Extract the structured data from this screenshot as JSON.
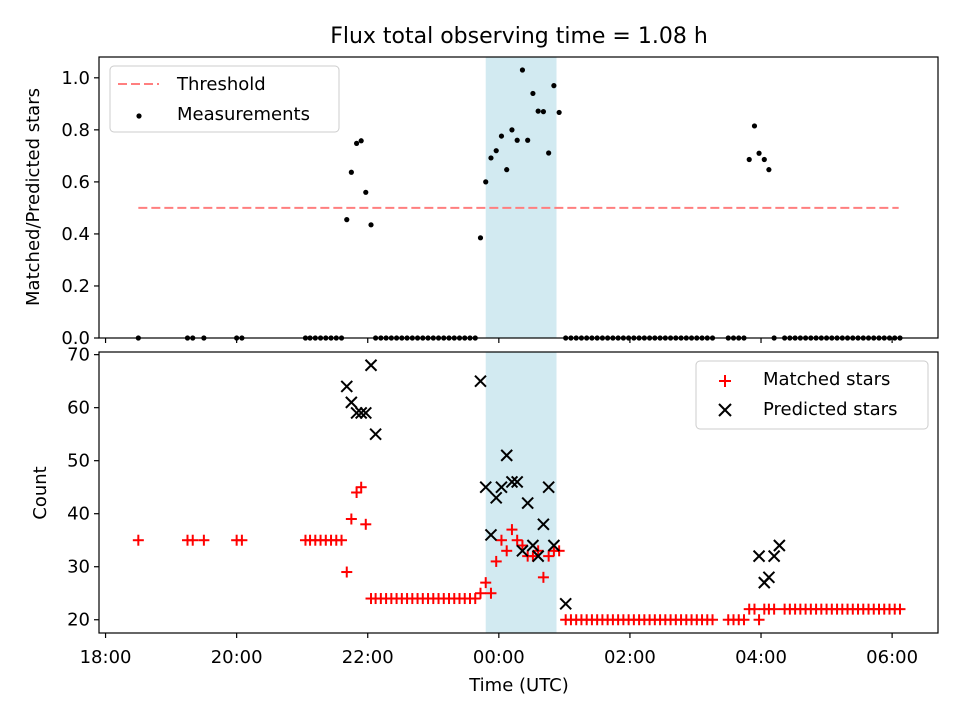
{
  "title": "Flux total observing time = 1.08 h",
  "chart_data": [
    {
      "type": "scatter",
      "ylabel": "Matched/Predicted stars",
      "xlabel": "",
      "ylim": [
        0.0,
        1.08
      ],
      "yticks": [
        0.0,
        0.2,
        0.4,
        0.6,
        0.8,
        1.0
      ],
      "ytick_labels": [
        "0.0",
        "0.2",
        "0.4",
        "0.6",
        "0.8",
        "1.0"
      ],
      "grid": false,
      "legend_position": "upper-left",
      "shaded_interval": {
        "start": 23.8,
        "end": 24.88,
        "color": "#add8e6"
      },
      "threshold": {
        "name": "Threshold",
        "y": 0.5,
        "x_start": 18.5,
        "x_end": 30.1,
        "color": "#ff7f7f"
      },
      "series": [
        {
          "name": "Measurements",
          "marker": "dot",
          "color": "#000000",
          "x": [
            18.5,
            19.25,
            19.33,
            19.5,
            20.0,
            20.08,
            21.05,
            21.12,
            21.2,
            21.28,
            21.36,
            21.44,
            21.52,
            21.6,
            21.68,
            21.75,
            21.83,
            21.9,
            21.97,
            22.05,
            22.12,
            22.2,
            22.28,
            22.36,
            22.44,
            22.52,
            22.6,
            22.68,
            22.76,
            22.84,
            22.92,
            23.0,
            23.08,
            23.16,
            23.24,
            23.32,
            23.4,
            23.48,
            23.56,
            23.64,
            23.72,
            23.8,
            23.88,
            23.96,
            24.04,
            24.12,
            24.2,
            24.28,
            24.36,
            24.44,
            24.52,
            24.6,
            24.68,
            24.76,
            24.84,
            24.92,
            25.02,
            25.1,
            25.18,
            25.26,
            25.34,
            25.42,
            25.5,
            25.58,
            25.66,
            25.74,
            25.82,
            25.9,
            25.98,
            26.06,
            26.14,
            26.22,
            26.3,
            26.38,
            26.46,
            26.54,
            26.62,
            26.7,
            26.78,
            26.86,
            26.94,
            27.02,
            27.1,
            27.18,
            27.26,
            27.5,
            27.58,
            27.66,
            27.74,
            27.82,
            27.9,
            27.97,
            28.05,
            28.12,
            28.2,
            28.36,
            28.44,
            28.52,
            28.6,
            28.68,
            28.76,
            28.84,
            28.92,
            29.0,
            29.08,
            29.16,
            29.24,
            29.32,
            29.4,
            29.48,
            29.56,
            29.64,
            29.72,
            29.8,
            29.88,
            29.96,
            30.04,
            30.12
          ],
          "y": [
            0.0,
            0.0,
            0.0,
            0.0,
            0.0,
            0.0,
            0.0,
            0.0,
            0.0,
            0.0,
            0.0,
            0.0,
            0.0,
            0.0,
            0.455,
            0.637,
            0.748,
            0.758,
            0.56,
            0.435,
            0.0,
            0.0,
            0.0,
            0.0,
            0.0,
            0.0,
            0.0,
            0.0,
            0.0,
            0.0,
            0.0,
            0.0,
            0.0,
            0.0,
            0.0,
            0.0,
            0.0,
            0.0,
            0.0,
            0.0,
            0.385,
            0.6,
            0.692,
            0.72,
            0.776,
            0.647,
            0.8,
            0.76,
            1.03,
            0.76,
            0.94,
            0.872,
            0.87,
            0.711,
            0.97,
            0.867,
            0.0,
            0.0,
            0.0,
            0.0,
            0.0,
            0.0,
            0.0,
            0.0,
            0.0,
            0.0,
            0.0,
            0.0,
            0.0,
            0.0,
            0.0,
            0.0,
            0.0,
            0.0,
            0.0,
            0.0,
            0.0,
            0.0,
            0.0,
            0.0,
            0.0,
            0.0,
            0.0,
            0.0,
            0.0,
            0.0,
            0.0,
            0.0,
            0.0,
            0.686,
            0.815,
            0.71,
            0.686,
            0.647,
            0.0,
            0.0,
            0.0,
            0.0,
            0.0,
            0.0,
            0.0,
            0.0,
            0.0,
            0.0,
            0.0,
            0.0,
            0.0,
            0.0,
            0.0,
            0.0,
            0.0,
            0.0,
            0.0,
            0.0,
            0.0,
            0.0,
            0.0,
            0.0
          ]
        }
      ],
      "legend": [
        "Threshold",
        "Measurements"
      ]
    },
    {
      "type": "scatter",
      "ylabel": "Count",
      "xlabel": "Time (UTC)",
      "ylim": [
        17.5,
        70.5
      ],
      "yticks": [
        20,
        30,
        40,
        50,
        60,
        70
      ],
      "ytick_labels": [
        "20",
        "30",
        "40",
        "50",
        "60",
        "70"
      ],
      "xlim": [
        17.9,
        30.7
      ],
      "xticks": [
        18,
        20,
        22,
        24,
        26,
        28,
        30
      ],
      "xtick_labels": [
        "18:00",
        "20:00",
        "22:00",
        "00:00",
        "02:00",
        "04:00",
        "06:00"
      ],
      "grid": false,
      "legend_position": "upper-right",
      "shaded_interval": {
        "start": 23.8,
        "end": 24.88,
        "color": "#add8e6"
      },
      "series": [
        {
          "name": "Matched stars",
          "marker": "plus",
          "color": "#ff0000",
          "x": [
            18.5,
            19.25,
            19.33,
            19.5,
            20.0,
            20.08,
            21.05,
            21.12,
            21.2,
            21.28,
            21.36,
            21.44,
            21.52,
            21.6,
            21.68,
            21.75,
            21.83,
            21.9,
            21.97,
            22.05,
            22.12,
            22.2,
            22.28,
            22.36,
            22.44,
            22.52,
            22.6,
            22.68,
            22.76,
            22.84,
            22.92,
            23.0,
            23.08,
            23.16,
            23.24,
            23.32,
            23.4,
            23.48,
            23.56,
            23.64,
            23.72,
            23.8,
            23.88,
            23.96,
            24.04,
            24.12,
            24.2,
            24.28,
            24.36,
            24.44,
            24.52,
            24.6,
            24.68,
            24.76,
            24.84,
            24.92,
            25.02,
            25.1,
            25.18,
            25.26,
            25.34,
            25.42,
            25.5,
            25.58,
            25.66,
            25.74,
            25.82,
            25.9,
            25.98,
            26.06,
            26.14,
            26.22,
            26.3,
            26.38,
            26.46,
            26.54,
            26.62,
            26.7,
            26.78,
            26.86,
            26.94,
            27.02,
            27.1,
            27.18,
            27.26,
            27.5,
            27.58,
            27.66,
            27.74,
            27.82,
            27.9,
            27.97,
            28.05,
            28.12,
            28.2,
            28.36,
            28.44,
            28.52,
            28.6,
            28.68,
            28.76,
            28.84,
            28.92,
            29.0,
            29.08,
            29.16,
            29.24,
            29.32,
            29.4,
            29.48,
            29.56,
            29.64,
            29.72,
            29.8,
            29.88,
            29.96,
            30.04,
            30.12
          ],
          "y": [
            35,
            35,
            35,
            35,
            35,
            35,
            35,
            35,
            35,
            35,
            35,
            35,
            35,
            35,
            29,
            39,
            44,
            45,
            38,
            24,
            24,
            24,
            24,
            24,
            24,
            24,
            24,
            24,
            24,
            24,
            24,
            24,
            24,
            24,
            24,
            24,
            24,
            24,
            24,
            24,
            25,
            27,
            25,
            31,
            35,
            33,
            37,
            35,
            34,
            32,
            32,
            33,
            28,
            32,
            33,
            33,
            20,
            20,
            20,
            20,
            20,
            20,
            20,
            20,
            20,
            20,
            20,
            20,
            20,
            20,
            20,
            20,
            20,
            20,
            20,
            20,
            20,
            20,
            20,
            20,
            20,
            20,
            20,
            20,
            20,
            20,
            20,
            20,
            20,
            22,
            22,
            20,
            22,
            22,
            22,
            22,
            22,
            22,
            22,
            22,
            22,
            22,
            22,
            22,
            22,
            22,
            22,
            22,
            22,
            22,
            22,
            22,
            22,
            22,
            22,
            22,
            22,
            22
          ]
        },
        {
          "name": "Predicted stars",
          "marker": "x",
          "color": "#000000",
          "x": [
            21.68,
            21.75,
            21.83,
            21.9,
            21.97,
            22.05,
            22.12,
            23.72,
            23.8,
            23.88,
            23.96,
            24.04,
            24.12,
            24.2,
            24.28,
            24.36,
            24.44,
            24.52,
            24.6,
            24.68,
            24.76,
            24.84,
            25.02,
            27.97,
            28.05,
            28.12,
            28.2,
            28.28
          ],
          "y": [
            64,
            61,
            59,
            59,
            59,
            68,
            55,
            65,
            45,
            36,
            43,
            45,
            51,
            46,
            46,
            33,
            42,
            34,
            32,
            38,
            45,
            34,
            23,
            32,
            27,
            28,
            32,
            34
          ]
        }
      ],
      "legend": [
        "Matched stars",
        "Predicted stars"
      ]
    }
  ]
}
